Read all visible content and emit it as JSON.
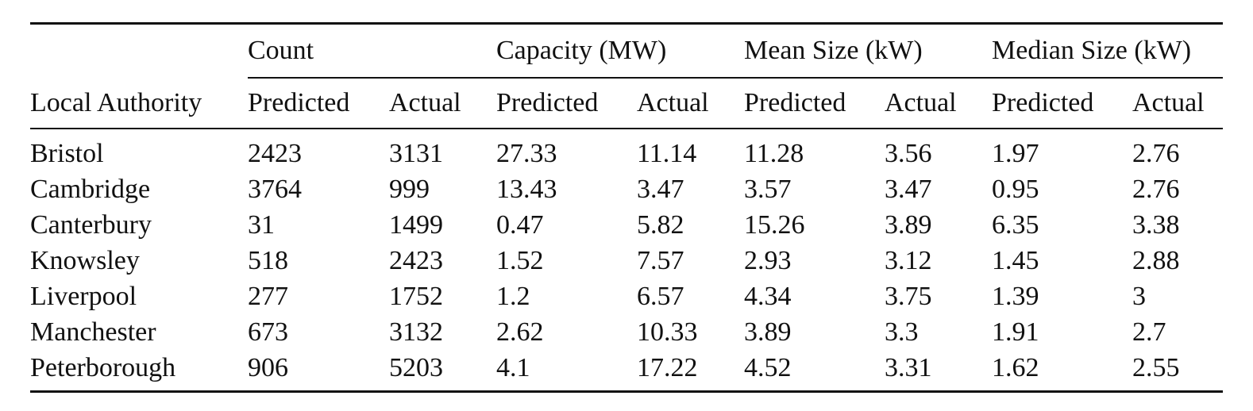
{
  "table": {
    "group_headers": [
      "",
      "Count",
      "Capacity (MW)",
      "Mean Size (kW)",
      "Median Size (kW)"
    ],
    "column_headers": [
      "Local Authority",
      "Predicted",
      "Actual",
      "Predicted",
      "Actual",
      "Predicted",
      "Actual",
      "Predicted",
      "Actual"
    ],
    "rows": [
      [
        "Bristol",
        "2423",
        "3131",
        "27.33",
        "11.14",
        "11.28",
        "3.56",
        "1.97",
        "2.76"
      ],
      [
        "Cambridge",
        "3764",
        "999",
        "13.43",
        "3.47",
        "3.57",
        "3.47",
        "0.95",
        "2.76"
      ],
      [
        "Canterbury",
        "31",
        "1499",
        "0.47",
        "5.82",
        "15.26",
        "3.89",
        "6.35",
        "3.38"
      ],
      [
        "Knowsley",
        "518",
        "2423",
        "1.52",
        "7.57",
        "2.93",
        "3.12",
        "1.45",
        "2.88"
      ],
      [
        "Liverpool",
        "277",
        "1752",
        "1.2",
        "6.57",
        "4.34",
        "3.75",
        "1.39",
        "3"
      ],
      [
        "Manchester",
        "673",
        "3132",
        "2.62",
        "10.33",
        "3.89",
        "3.3",
        "1.91",
        "2.7"
      ],
      [
        "Peterborough",
        "906",
        "5203",
        "4.1",
        "17.22",
        "4.52",
        "3.31",
        "1.62",
        "2.55"
      ]
    ]
  }
}
